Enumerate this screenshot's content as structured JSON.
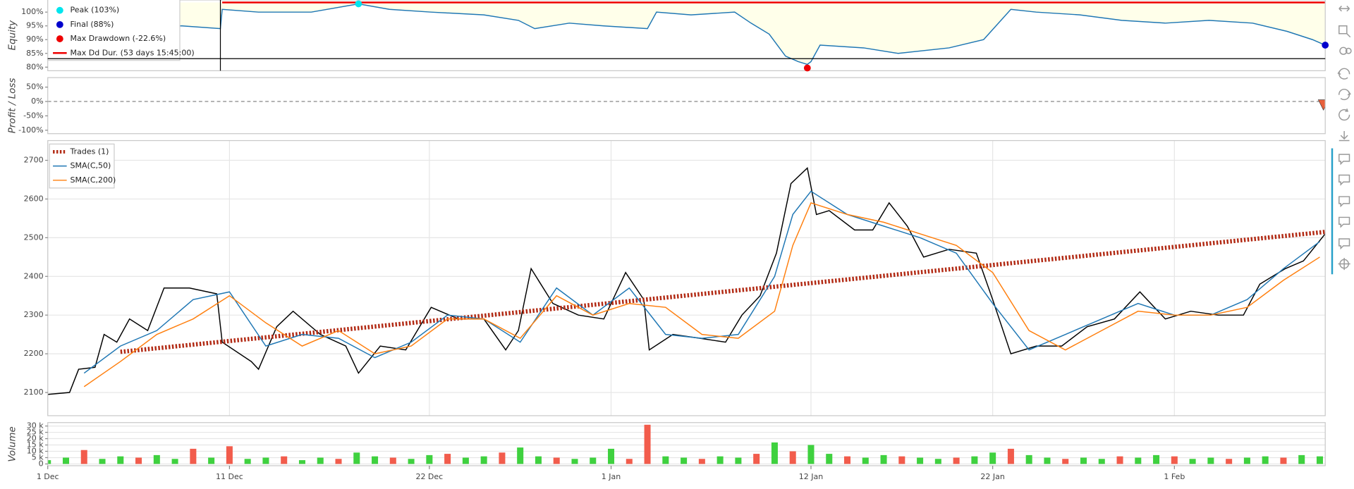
{
  "chart_data": [
    {
      "type": "line",
      "ylabel": "Equity",
      "x": [
        0,
        7.4,
        9.5,
        9.6,
        11.6,
        14.5,
        17.1,
        18.8,
        21.1,
        24.0,
        25.9,
        26.8,
        28.7,
        30.6,
        33.0,
        33.5,
        35.4,
        37.8,
        38.7,
        39.7,
        40.6,
        41.3,
        41.8,
        42.0,
        42.5,
        44.9,
        46.8,
        49.6,
        51.5,
        53.0,
        54.4,
        56.8,
        59.1,
        61.5,
        63.9,
        66.3,
        68.2,
        69.6,
        70.3
      ],
      "values": [
        95,
        95,
        94,
        101,
        100,
        100,
        103,
        101,
        100,
        99,
        97,
        94,
        96,
        95,
        94,
        100,
        99,
        100,
        96,
        92,
        84,
        82,
        81,
        82,
        88,
        87,
        85,
        87,
        90,
        101,
        100,
        99,
        97,
        96,
        97,
        96,
        93,
        90,
        88
      ],
      "color": "#1f77b4",
      "fill_color": "#ffffea",
      "ylim": [
        78.7,
        104.4
      ],
      "yticks": [
        {
          "value": 80,
          "label": "80%"
        },
        {
          "value": 85,
          "label": "85%"
        },
        {
          "value": 90,
          "label": "90%"
        },
        {
          "value": 95,
          "label": "95%"
        },
        {
          "value": 100,
          "label": "100%"
        }
      ],
      "markers": [
        {
          "name": "Peak (103%)",
          "color": "#00e5ee",
          "x": 17.1,
          "value": 103
        },
        {
          "name": "Final (88%)",
          "color": "#0000cc",
          "x": 70.3,
          "value": 88
        },
        {
          "name": "Max Drawdown (-22.6%)",
          "color": "#ee0000",
          "x": 41.8,
          "value": 79.7
        }
      ],
      "duration_line": {
        "name": "Max Dd Dur. (53 days 15:45:00)",
        "color": "#ee0000",
        "x": [
          9.6,
          70.3
        ],
        "value": 103.5
      }
    },
    {
      "type": "scatter",
      "ylabel": "Profit / Loss",
      "x": [
        70.2
      ],
      "values": [
        -12
      ],
      "color": "#e8603c",
      "ylim": [
        -112,
        83
      ],
      "yticks": [
        {
          "value": -100,
          "label": "-100%"
        },
        {
          "value": -50,
          "label": "-50%"
        },
        {
          "value": 0,
          "label": "0%"
        },
        {
          "value": 50,
          "label": "50%"
        }
      ]
    },
    {
      "type": "line",
      "grid": true,
      "ylim": [
        2040,
        2751
      ],
      "yticks": [
        2100,
        2200,
        2300,
        2400,
        2500,
        2600,
        2700
      ],
      "price": {
        "color": "#000000",
        "x": [
          0,
          1.2,
          1.7,
          2.6,
          3.1,
          3.8,
          4.5,
          5.5,
          6.4,
          7.8,
          9.3,
          9.6,
          11.2,
          11.6,
          12.6,
          13.5,
          15.0,
          16.4,
          17.1,
          18.3,
          19.7,
          21.1,
          22.6,
          24.0,
          25.2,
          25.9,
          26.6,
          27.8,
          29.2,
          30.6,
          31.8,
          32.8,
          33.1,
          34.4,
          35.9,
          37.3,
          38.2,
          39.2,
          40.1,
          40.9,
          41.8,
          42.3,
          43.0,
          44.4,
          45.4,
          46.3,
          47.3,
          48.2,
          49.6,
          51.1,
          52.0,
          53.0,
          54.4,
          55.8,
          57.2,
          58.7,
          60.1,
          61.5,
          62.9,
          64.4,
          65.8,
          66.7,
          68.1,
          69.1,
          70.3
        ],
        "values": [
          2095,
          2100,
          2160,
          2165,
          2250,
          2230,
          2290,
          2260,
          2370,
          2370,
          2355,
          2230,
          2180,
          2160,
          2270,
          2310,
          2250,
          2220,
          2150,
          2220,
          2210,
          2320,
          2290,
          2290,
          2210,
          2260,
          2420,
          2330,
          2300,
          2290,
          2410,
          2340,
          2210,
          2250,
          2240,
          2230,
          2300,
          2350,
          2460,
          2640,
          2680,
          2560,
          2570,
          2520,
          2520,
          2590,
          2530,
          2450,
          2470,
          2460,
          2340,
          2200,
          2220,
          2220,
          2270,
          2290,
          2360,
          2290,
          2310,
          2300,
          2300,
          2380,
          2420,
          2440,
          2510
        ]
      },
      "series": [
        {
          "name": "Trades (1)",
          "color": "#b22a14",
          "dash": true,
          "x": [
            4,
            70.3
          ],
          "values": [
            2205,
            2515
          ]
        },
        {
          "name": "SMA(C,50)",
          "color": "#1f77b4",
          "x": [
            2,
            4,
            6,
            8,
            10,
            12,
            14,
            16,
            18,
            20,
            22,
            24,
            26,
            28,
            30,
            32,
            34,
            36,
            38,
            40,
            41,
            42,
            44,
            46,
            48,
            50,
            52,
            54,
            56,
            58,
            60,
            62,
            64,
            66,
            68,
            70
          ],
          "values": [
            2150,
            2220,
            2260,
            2340,
            2360,
            2220,
            2250,
            2240,
            2190,
            2230,
            2300,
            2290,
            2230,
            2370,
            2300,
            2370,
            2250,
            2240,
            2250,
            2400,
            2560,
            2620,
            2560,
            2530,
            2500,
            2460,
            2330,
            2210,
            2250,
            2290,
            2330,
            2300,
            2300,
            2340,
            2420,
            2490
          ]
        },
        {
          "name": "SMA(C,200)",
          "color": "#ff7f0e",
          "x": [
            2,
            4,
            6,
            8,
            10,
            12,
            14,
            16,
            18,
            20,
            22,
            24,
            26,
            28,
            30,
            32,
            34,
            36,
            38,
            40,
            41,
            42,
            44,
            46,
            48,
            50,
            52,
            54,
            56,
            58,
            60,
            62,
            64,
            66,
            68,
            70
          ],
          "values": [
            2115,
            2180,
            2250,
            2290,
            2350,
            2280,
            2220,
            2260,
            2200,
            2220,
            2290,
            2290,
            2240,
            2350,
            2300,
            2330,
            2320,
            2250,
            2240,
            2310,
            2480,
            2590,
            2560,
            2540,
            2510,
            2480,
            2410,
            2260,
            2210,
            2260,
            2310,
            2300,
            2300,
            2320,
            2390,
            2450
          ]
        }
      ]
    },
    {
      "type": "bar",
      "ylabel": "Volume",
      "grid": true,
      "x": [
        0,
        1,
        2,
        3,
        4,
        5,
        6,
        7,
        8,
        9,
        10,
        11,
        12,
        13,
        14,
        15,
        16,
        17,
        18,
        19,
        20,
        21,
        22,
        23,
        24,
        25,
        26,
        27,
        28,
        29,
        30,
        31,
        32,
        33,
        34,
        35,
        36,
        37,
        38,
        39,
        40,
        41,
        42,
        43,
        44,
        45,
        46,
        47,
        48,
        49,
        50,
        51,
        52,
        53,
        54,
        55,
        56,
        57,
        58,
        59,
        60,
        61,
        62,
        63,
        64,
        65,
        66,
        67,
        68,
        69,
        70
      ],
      "values": [
        3000,
        5000,
        11000,
        4000,
        6000,
        5000,
        7000,
        4000,
        12000,
        5000,
        14000,
        4000,
        5000,
        6000,
        3000,
        5000,
        4000,
        9000,
        6000,
        5000,
        4000,
        7000,
        8000,
        5000,
        6000,
        9000,
        13000,
        6000,
        5000,
        4000,
        5000,
        12000,
        4000,
        31000,
        6000,
        5000,
        4000,
        6000,
        5000,
        8000,
        17000,
        10000,
        15000,
        8000,
        6000,
        5000,
        7000,
        6000,
        5000,
        4000,
        5000,
        6000,
        9000,
        12000,
        7000,
        5000,
        4000,
        5000,
        4000,
        6000,
        5000,
        7000,
        6000,
        4000,
        5000,
        4000,
        5000,
        6000,
        5000,
        7000,
        6000
      ],
      "up": [
        1,
        1,
        0,
        1,
        1,
        0,
        1,
        1,
        0,
        1,
        0,
        1,
        1,
        0,
        1,
        1,
        0,
        1,
        1,
        0,
        1,
        1,
        0,
        1,
        1,
        0,
        1,
        1,
        0,
        1,
        1,
        1,
        0,
        0,
        1,
        1,
        0,
        1,
        1,
        0,
        1,
        0,
        1,
        1,
        0,
        1,
        1,
        0,
        1,
        1,
        0,
        1,
        1,
        0,
        1,
        1,
        0,
        1,
        1,
        0,
        1,
        1,
        0,
        1,
        1,
        0,
        1,
        1,
        0,
        1,
        1
      ],
      "color_up": "#3fd13f",
      "color_down": "#f25c4c",
      "ylim": [
        -1400,
        32700
      ],
      "yticks": [
        0,
        {
          "value": 5000,
          "label": "5 k"
        },
        {
          "value": 10000,
          "label": "10 k"
        },
        {
          "value": 15000,
          "label": "15 k"
        },
        {
          "value": 20000,
          "label": "20 k"
        },
        {
          "value": 25000,
          "label": "25 k"
        },
        {
          "value": 30000,
          "label": "30 k"
        }
      ],
      "xlim": [
        0,
        70.3
      ],
      "xticks": [
        {
          "value": 0,
          "label": "1 Dec"
        },
        {
          "value": 10,
          "label": "11 Dec"
        },
        {
          "value": 21,
          "label": "22 Dec"
        },
        {
          "value": 31,
          "label": "1 Jan"
        },
        {
          "value": 42,
          "label": "12 Jan"
        },
        {
          "value": 52,
          "label": "22 Jan"
        },
        {
          "value": 62,
          "label": "1 Feb"
        }
      ]
    }
  ]
}
